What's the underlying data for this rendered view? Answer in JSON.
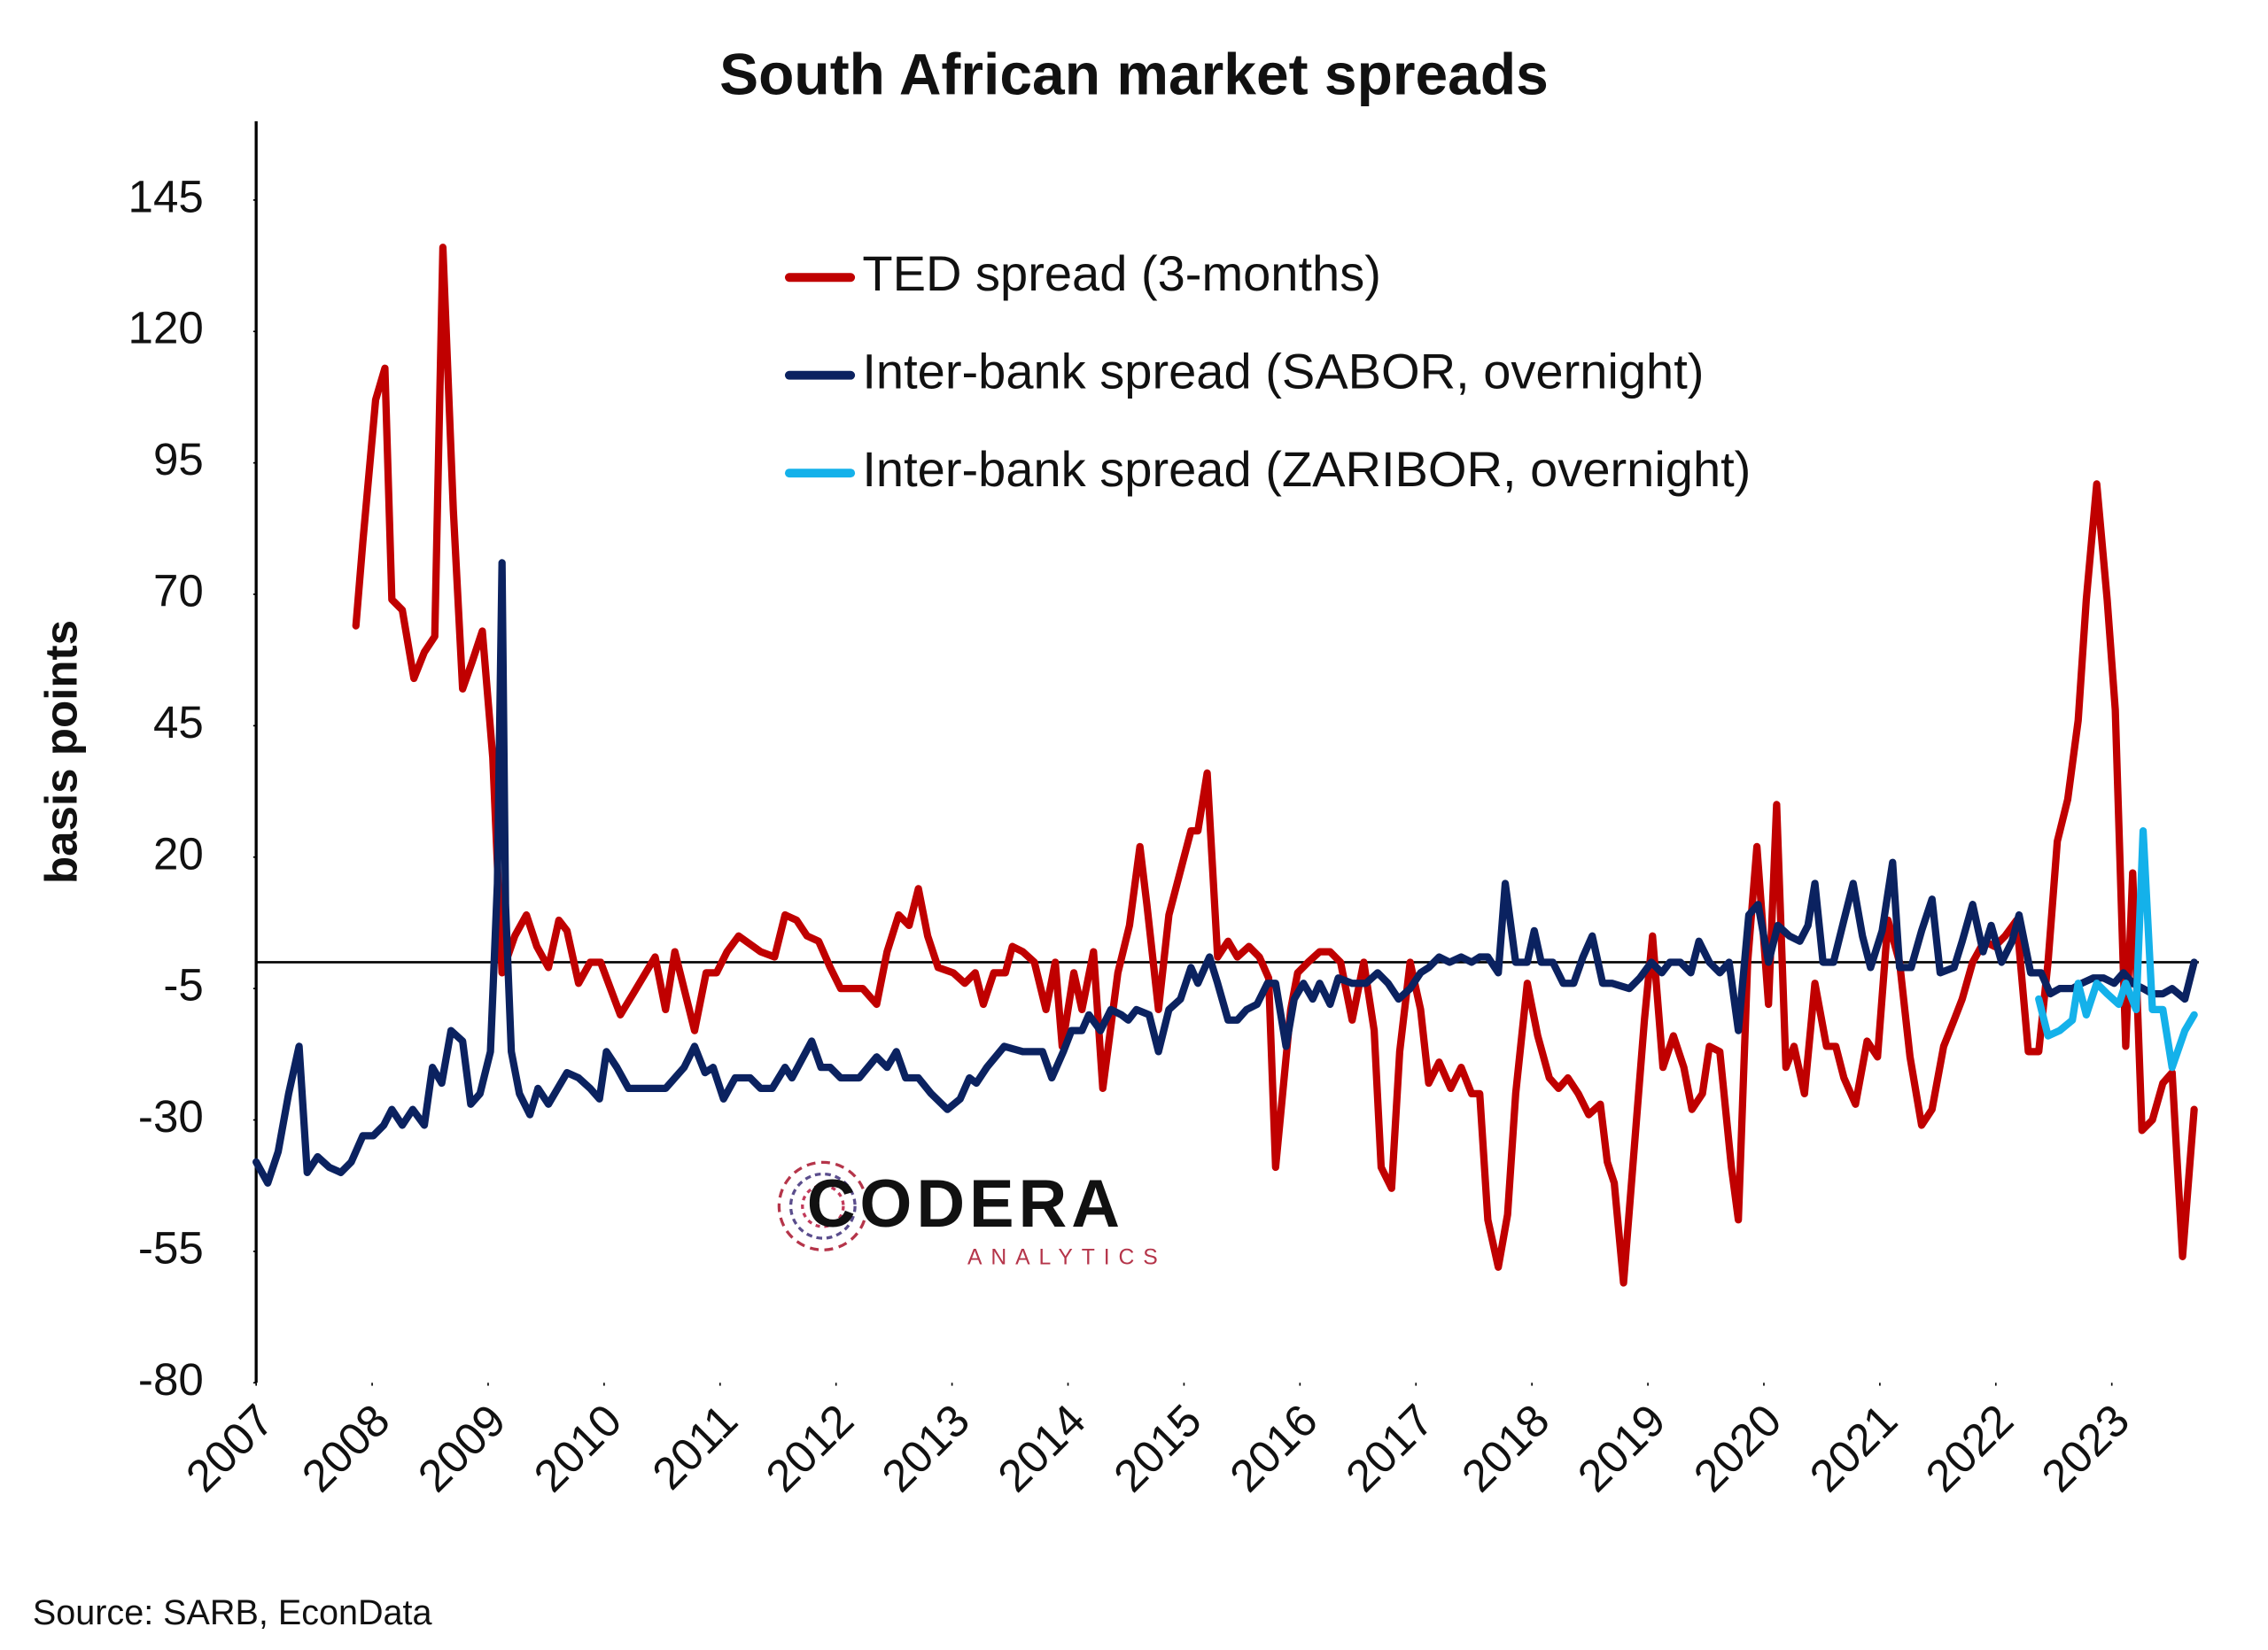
{
  "chart_data": {
    "type": "line",
    "title": "South African market spreads",
    "y_label": "basis points",
    "source": "Source: SARB, EconData",
    "watermark": {
      "text": "CODERA",
      "subtext": "ANALYTICS"
    },
    "xlim": [
      2007,
      2023.75
    ],
    "xticks": [
      2007,
      2008,
      2009,
      2010,
      2011,
      2012,
      2013,
      2014,
      2015,
      2016,
      2017,
      2018,
      2019,
      2020,
      2021,
      2022,
      2023
    ],
    "ylim": [
      -80,
      160
    ],
    "yticks": [
      -80,
      -55,
      -30,
      -5,
      20,
      45,
      70,
      95,
      120,
      145
    ],
    "legend": "top",
    "series": [
      {
        "name": "TED spread (3-months)",
        "color": "#c00000",
        "x": [
          2007.86,
          2007.92,
          2008.03,
          2008.11,
          2008.17,
          2008.26,
          2008.36,
          2008.45,
          2008.54,
          2008.61,
          2008.7,
          2008.78,
          2008.86,
          2008.95,
          2009.04,
          2009.12,
          2009.23,
          2009.33,
          2009.42,
          2009.52,
          2009.61,
          2009.68,
          2009.78,
          2009.88,
          2009.97,
          2010.14,
          2010.25,
          2010.44,
          2010.53,
          2010.61,
          2010.78,
          2010.88,
          2010.97,
          2011.06,
          2011.16,
          2011.35,
          2011.47,
          2011.56,
          2011.66,
          2011.75,
          2011.85,
          2011.95,
          2012.04,
          2012.23,
          2012.35,
          2012.44,
          2012.54,
          2012.63,
          2012.71,
          2012.79,
          2012.88,
          2013.01,
          2013.11,
          2013.2,
          2013.27,
          2013.36,
          2013.46,
          2013.52,
          2013.61,
          2013.71,
          2013.81,
          2013.89,
          2013.95,
          2014.05,
          2014.12,
          2014.22,
          2014.3,
          2014.43,
          2014.53,
          2014.62,
          2014.68,
          2014.78,
          2014.87,
          2015.06,
          2015.12,
          2015.2,
          2015.29,
          2015.38,
          2015.46,
          2015.56,
          2015.65,
          2015.73,
          2015.79,
          2015.92,
          2015.98,
          2016.07,
          2016.17,
          2016.26,
          2016.35,
          2016.45,
          2016.55,
          2016.64,
          2016.7,
          2016.79,
          2016.86,
          2016.95,
          2017.04,
          2017.11,
          2017.2,
          2017.3,
          2017.39,
          2017.48,
          2017.55,
          2017.62,
          2017.71,
          2017.79,
          2017.86,
          2017.96,
          2018.05,
          2018.15,
          2018.23,
          2018.31,
          2018.4,
          2018.49,
          2018.59,
          2018.65,
          2018.71,
          2018.79,
          2018.88,
          2018.97,
          2019.04,
          2019.13,
          2019.22,
          2019.31,
          2019.38,
          2019.47,
          2019.53,
          2019.62,
          2019.72,
          2019.78,
          2019.86,
          2019.94,
          2020.04,
          2020.11,
          2020.19,
          2020.26,
          2020.35,
          2020.44,
          2020.54,
          2020.62,
          2020.69,
          2020.79,
          2020.89,
          2020.98,
          2021.07,
          2021.17,
          2021.26,
          2021.36,
          2021.45,
          2021.55,
          2021.64,
          2021.71,
          2021.8,
          2021.9,
          2021.99,
          2022.08,
          2022.18,
          2022.28,
          2022.37,
          2022.45,
          2022.53,
          2022.62,
          2022.71,
          2022.78,
          2022.87,
          2022.96,
          2023.03,
          2023.12,
          2023.18,
          2023.26,
          2023.35,
          2023.44,
          2023.52,
          2023.61,
          2023.71
        ],
        "values": [
          64,
          80,
          107,
          113,
          69,
          67,
          54,
          59,
          62,
          136,
          86,
          52,
          57,
          63,
          39,
          -2,
          5,
          9,
          3,
          -1,
          8,
          6,
          -4,
          0,
          0,
          -10,
          -6,
          1,
          -9,
          2,
          -13,
          -2,
          -2,
          2,
          5,
          2,
          1,
          9,
          8,
          5,
          4,
          -1,
          -5,
          -5,
          -8,
          2,
          9,
          7,
          14,
          5,
          -1,
          -2,
          -4,
          -2,
          -8,
          -2,
          -2,
          3,
          2,
          0,
          -9,
          0,
          -16,
          -2,
          -9,
          2,
          -24,
          -2,
          7,
          22,
          11,
          -9,
          9,
          25,
          25,
          36,
          1,
          4,
          1,
          3,
          1,
          -3,
          -39,
          -9,
          -2,
          0,
          2,
          2,
          0,
          -11,
          0,
          -13,
          -39,
          -43,
          -17,
          0,
          -9,
          -23,
          -19,
          -24,
          -20,
          -25,
          -25,
          -49,
          -58,
          -48,
          -25,
          -4,
          -14,
          -22,
          -24,
          -22,
          -25,
          -29,
          -27,
          -38,
          -42,
          -61,
          -36,
          -11,
          5,
          -20,
          -14,
          -20,
          -28,
          -25,
          -16,
          -17,
          -39,
          -49,
          0,
          22,
          -8,
          30,
          -20,
          -16,
          -25,
          -4,
          -16,
          -16,
          -22,
          -27,
          -15,
          -18,
          8,
          0,
          -18,
          -31,
          -28,
          -16,
          -11,
          -7,
          0,
          4,
          3,
          5,
          8,
          -17,
          -17,
          0,
          23,
          31,
          46,
          69,
          91,
          69,
          48,
          -16,
          17,
          -32,
          -30,
          -23,
          -21,
          -56,
          -28
        ]
      },
      {
        "name": "Inter-bank spread (SABOR, overnight)",
        "color": "#0b2260",
        "x": [
          2007.0,
          2007.1,
          2007.19,
          2007.28,
          2007.37,
          2007.44,
          2007.53,
          2007.63,
          2007.73,
          2007.82,
          2007.92,
          2008.01,
          2008.1,
          2008.17,
          2008.26,
          2008.35,
          2008.45,
          2008.52,
          2008.6,
          2008.68,
          2008.78,
          2008.85,
          2008.93,
          2009.02,
          2009.08,
          2009.12,
          2009.15,
          2009.2,
          2009.27,
          2009.36,
          2009.43,
          2009.52,
          2009.68,
          2009.78,
          2009.88,
          2009.96,
          2010.02,
          2010.11,
          2010.21,
          2010.53,
          2010.61,
          2010.69,
          2010.78,
          2010.87,
          2010.94,
          2011.03,
          2011.13,
          2011.26,
          2011.35,
          2011.45,
          2011.56,
          2011.62,
          2011.79,
          2011.87,
          2011.95,
          2012.04,
          2012.2,
          2012.35,
          2012.44,
          2012.52,
          2012.6,
          2012.71,
          2012.82,
          2012.96,
          2013.07,
          2013.15,
          2013.21,
          2013.3,
          2013.45,
          2013.61,
          2013.78,
          2013.86,
          2013.96,
          2014.03,
          2014.12,
          2014.18,
          2014.28,
          2014.37,
          2014.46,
          2014.52,
          2014.59,
          2014.7,
          2014.78,
          2014.87,
          2014.97,
          2015.06,
          2015.12,
          2015.22,
          2015.29,
          2015.38,
          2015.46,
          2015.54,
          2015.63,
          2015.72,
          2015.79,
          2015.88,
          2015.95,
          2016.03,
          2016.11,
          2016.17,
          2016.26,
          2016.33,
          2016.45,
          2016.57,
          2016.67,
          2016.76,
          2016.85,
          2016.95,
          2017.04,
          2017.11,
          2017.2,
          2017.29,
          2017.39,
          2017.48,
          2017.55,
          2017.62,
          2017.71,
          2017.77,
          2017.86,
          2017.96,
          2018.02,
          2018.08,
          2018.18,
          2018.27,
          2018.36,
          2018.44,
          2018.52,
          2018.61,
          2018.69,
          2018.84,
          2018.93,
          2019.03,
          2019.12,
          2019.19,
          2019.28,
          2019.37,
          2019.44,
          2019.53,
          2019.62,
          2019.7,
          2019.78,
          2019.87,
          2019.95,
          2020.04,
          2020.12,
          2020.22,
          2020.31,
          2020.38,
          2020.44,
          2020.51,
          2020.6,
          2020.69,
          2020.77,
          2020.85,
          2020.92,
          2021.02,
          2021.11,
          2021.17,
          2021.27,
          2021.36,
          2021.45,
          2021.52,
          2021.64,
          2021.71,
          2021.8,
          2021.89,
          2021.96,
          2022.05,
          2022.14,
          2022.2,
          2022.3,
          2022.39,
          2022.47,
          2022.55,
          2022.66,
          2022.74,
          2022.84,
          2022.93,
          2023.02,
          2023.1,
          2023.18,
          2023.27,
          2023.35,
          2023.44,
          2023.52,
          2023.63,
          2023.71
        ],
        "values": [
          -38,
          -42,
          -36,
          -25,
          -16,
          -40,
          -37,
          -39,
          -40,
          -38,
          -33,
          -33,
          -31,
          -28,
          -31,
          -28,
          -31,
          -20,
          -23,
          -13,
          -15,
          -27,
          -25,
          -17,
          15,
          76,
          11,
          -17,
          -25,
          -29,
          -24,
          -27,
          -21,
          -22,
          -24,
          -26,
          -17,
          -20,
          -24,
          -24,
          -22,
          -20,
          -16,
          -21,
          -20,
          -26,
          -22,
          -22,
          -24,
          -24,
          -20,
          -22,
          -15,
          -20,
          -20,
          -22,
          -22,
          -18,
          -20,
          -17,
          -22,
          -22,
          -25,
          -28,
          -26,
          -22,
          -23,
          -20,
          -16,
          -17,
          -17,
          -22,
          -17,
          -13,
          -13,
          -10,
          -13,
          -9,
          -10,
          -11,
          -9,
          -10,
          -17,
          -9,
          -7,
          -1,
          -4,
          1,
          -4,
          -11,
          -11,
          -9,
          -8,
          -4,
          -4,
          -16,
          -7,
          -4,
          -7,
          -4,
          -8,
          -3,
          -4,
          -4,
          -2,
          -4,
          -7,
          -5,
          -2,
          -1,
          1,
          0,
          1,
          0,
          1,
          1,
          -2,
          15,
          0,
          0,
          6,
          0,
          0,
          -4,
          -4,
          1,
          5,
          -4,
          -4,
          -5,
          -3,
          0,
          -2,
          0,
          0,
          -2,
          4,
          0,
          -2,
          0,
          -13,
          9,
          11,
          0,
          7,
          5,
          4,
          7,
          15,
          0,
          0,
          8,
          15,
          5,
          -1,
          6,
          19,
          -1,
          -1,
          6,
          12,
          -2,
          -1,
          4,
          11,
          2,
          7,
          0,
          4,
          9,
          -2,
          -2,
          -6,
          -5,
          -5,
          -4,
          -3,
          -3,
          -4,
          -2,
          -4,
          -5,
          -6,
          -6,
          -5,
          -7,
          0
        ]
      },
      {
        "name": "Inter-bank spread (ZARIBOR, overnight)",
        "color": "#14b1ea",
        "x": [
          2022.37,
          2022.45,
          2022.55,
          2022.66,
          2022.71,
          2022.78,
          2022.87,
          2022.96,
          2023.06,
          2023.12,
          2023.21,
          2023.27,
          2023.35,
          2023.44,
          2023.52,
          2023.63,
          2023.71
        ],
        "values": [
          -7,
          -14,
          -13,
          -11,
          -4,
          -10,
          -4,
          -6,
          -8,
          -4,
          -9,
          25,
          -9,
          -9,
          -20,
          -13,
          -10
        ]
      }
    ]
  }
}
